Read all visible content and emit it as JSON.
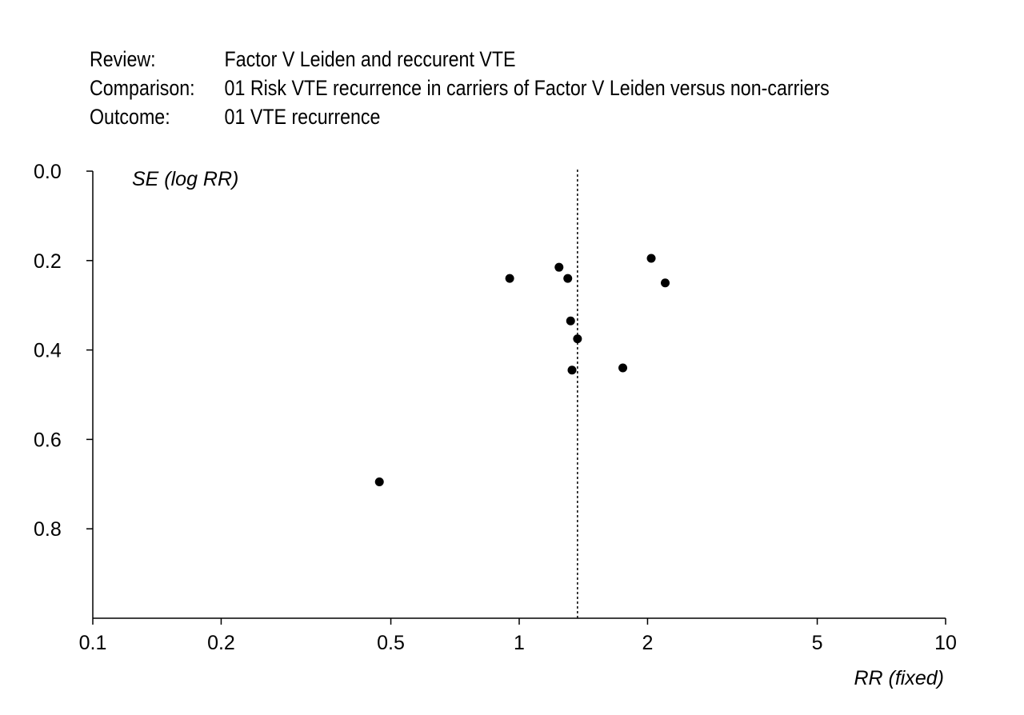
{
  "header": {
    "rows": [
      {
        "label": "Review:",
        "value": "Factor V Leiden and reccurent VTE"
      },
      {
        "label": "Comparison:",
        "value": "01 Risk VTE recurrence in carriers of Factor V Leiden versus non-carriers"
      },
      {
        "label": "Outcome:",
        "value": "01 VTE recurrence"
      }
    ]
  },
  "chart_data": {
    "type": "scatter",
    "xlabel": "RR (fixed)",
    "ylabel": "SE (log RR)",
    "x_scale": "log",
    "xlim": [
      0.1,
      10
    ],
    "ylim": [
      0.0,
      1.0
    ],
    "y_inverted": true,
    "x_ticks": [
      {
        "value": 0.1,
        "label": "0.1"
      },
      {
        "value": 0.2,
        "label": "0.2"
      },
      {
        "value": 0.5,
        "label": "0.5"
      },
      {
        "value": 1,
        "label": "1"
      },
      {
        "value": 2,
        "label": "2"
      },
      {
        "value": 5,
        "label": "5"
      },
      {
        "value": 10,
        "label": "10"
      }
    ],
    "y_ticks": [
      {
        "value": 0.0,
        "label": "0.0"
      },
      {
        "value": 0.2,
        "label": "0.2"
      },
      {
        "value": 0.4,
        "label": "0.4"
      },
      {
        "value": 0.6,
        "label": "0.6"
      },
      {
        "value": 0.8,
        "label": "0.8"
      }
    ],
    "reference_line_x": 1.37,
    "points": [
      {
        "x": 0.95,
        "y": 0.24
      },
      {
        "x": 1.24,
        "y": 0.215
      },
      {
        "x": 1.3,
        "y": 0.24
      },
      {
        "x": 1.32,
        "y": 0.335
      },
      {
        "x": 1.37,
        "y": 0.375
      },
      {
        "x": 1.33,
        "y": 0.445
      },
      {
        "x": 1.75,
        "y": 0.44
      },
      {
        "x": 2.04,
        "y": 0.195
      },
      {
        "x": 2.2,
        "y": 0.25
      },
      {
        "x": 0.47,
        "y": 0.695
      }
    ]
  }
}
